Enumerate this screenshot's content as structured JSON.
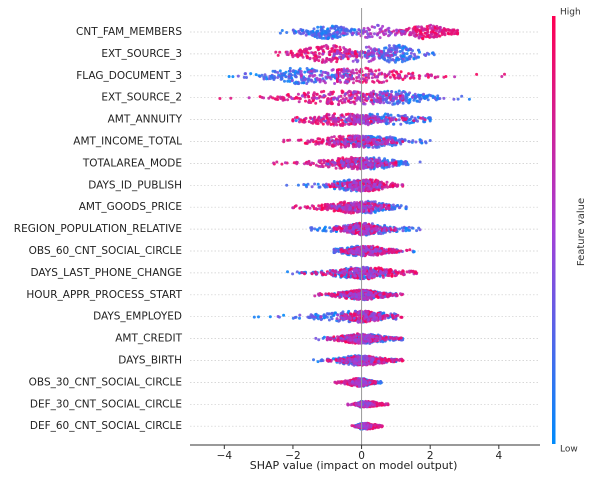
{
  "chart_data": {
    "type": "scatter",
    "subtype": "shap-beeswarm",
    "xlabel": "SHAP value (impact on model output)",
    "xlim": [
      -5.0,
      5.2
    ],
    "xticks": [
      -4,
      -2,
      0,
      2,
      4
    ],
    "xtick_labels": [
      "−4",
      "−2",
      "0",
      "2",
      "4"
    ],
    "grid": false,
    "zero_line": true,
    "features": [
      {
        "name": "CNT_FAM_MEMBERS",
        "low_range": [
          -2.4,
          0.0
        ],
        "high_range": [
          0.6,
          2.8
        ],
        "low_center": -1.0,
        "high_center": 1.9,
        "low_side": "right",
        "spread": 7
      },
      {
        "name": "EXT_SOURCE_3",
        "low_range": [
          -0.2,
          2.3
        ],
        "high_range": [
          -2.5,
          0.3
        ],
        "low_center": 1.0,
        "high_center": -1.0,
        "low_side": "right",
        "spread": 9
      },
      {
        "name": "FLAG_DOCUMENT_3",
        "low_range": [
          -3.9,
          -0.3
        ],
        "high_range": [
          -0.7,
          4.2
        ],
        "low_center": -1.8,
        "high_center": 0.0,
        "low_side": "left",
        "spread": 8
      },
      {
        "name": "EXT_SOURCE_2",
        "low_range": [
          0.0,
          3.3
        ],
        "high_range": [
          -4.5,
          1.2
        ],
        "low_center": 1.0,
        "high_center": -0.6,
        "low_side": "right",
        "spread": 7
      },
      {
        "name": "AMT_ANNUITY",
        "low_range": [
          -2.0,
          2.0
        ],
        "high_range": [
          -2.0,
          2.0
        ],
        "low_center": 0.6,
        "high_center": -0.6,
        "low_side": "right",
        "spread": 6
      },
      {
        "name": "AMT_INCOME_TOTAL",
        "low_range": [
          -1.0,
          2.0
        ],
        "high_range": [
          -2.4,
          1.2
        ],
        "low_center": 0.4,
        "high_center": -0.4,
        "low_side": "right",
        "spread": 6
      },
      {
        "name": "TOTALAREA_MODE",
        "low_range": [
          -1.0,
          1.9
        ],
        "high_range": [
          -2.7,
          1.0
        ],
        "low_center": 0.3,
        "high_center": -0.3,
        "low_side": "right",
        "spread": 6
      },
      {
        "name": "DAYS_ID_PUBLISH",
        "low_range": [
          -2.4,
          0.6
        ],
        "high_range": [
          -1.0,
          1.2
        ],
        "low_center": -0.2,
        "high_center": 0.2,
        "low_side": "left",
        "spread": 6
      },
      {
        "name": "AMT_GOODS_PRICE",
        "low_range": [
          -1.0,
          1.3
        ],
        "high_range": [
          -2.2,
          0.8
        ],
        "low_center": 0.2,
        "high_center": -0.3,
        "low_side": "right",
        "spread": 6
      },
      {
        "name": "REGION_POPULATION_RELATIVE",
        "low_range": [
          -1.5,
          1.8
        ],
        "high_range": [
          -0.8,
          1.0
        ],
        "low_center": 0.1,
        "high_center": 0.0,
        "low_side": "right",
        "spread": 6
      },
      {
        "name": "OBS_60_CNT_SOCIAL_CIRCLE",
        "low_range": [
          -0.8,
          1.7
        ],
        "high_range": [
          -0.6,
          1.5
        ],
        "low_center": 0.0,
        "high_center": 0.2,
        "low_side": "left",
        "spread": 5
      },
      {
        "name": "DAYS_LAST_PHONE_CHANGE",
        "low_range": [
          -2.2,
          1.0
        ],
        "high_range": [
          -1.8,
          1.6
        ],
        "low_center": -0.1,
        "high_center": 0.2,
        "low_side": "left",
        "spread": 6
      },
      {
        "name": "HOUR_APPR_PROCESS_START",
        "low_range": [
          -1.3,
          1.0
        ],
        "high_range": [
          -1.5,
          1.2
        ],
        "low_center": 0.0,
        "high_center": 0.0,
        "low_side": "right",
        "spread": 5
      },
      {
        "name": "DAYS_EMPLOYED",
        "low_range": [
          -3.2,
          1.0
        ],
        "high_range": [
          -0.6,
          1.2
        ],
        "low_center": -0.1,
        "high_center": 0.1,
        "low_side": "left",
        "spread": 6
      },
      {
        "name": "AMT_CREDIT",
        "low_range": [
          -1.4,
          1.2
        ],
        "high_range": [
          -1.0,
          1.2
        ],
        "low_center": 0.1,
        "high_center": -0.1,
        "low_side": "right",
        "spread": 5
      },
      {
        "name": "DAYS_BIRTH",
        "low_range": [
          -1.4,
          1.0
        ],
        "high_range": [
          -1.0,
          1.3
        ],
        "low_center": -0.1,
        "high_center": 0.1,
        "low_side": "left",
        "spread": 5
      },
      {
        "name": "OBS_30_CNT_SOCIAL_CIRCLE",
        "low_range": [
          -0.5,
          0.6
        ],
        "high_range": [
          -0.9,
          0.4
        ],
        "low_center": 0.0,
        "high_center": -0.1,
        "low_side": "right",
        "spread": 4
      },
      {
        "name": "DEF_30_CNT_SOCIAL_CIRCLE",
        "low_range": [
          -0.2,
          0.2
        ],
        "high_range": [
          -0.4,
          0.8
        ],
        "low_center": 0.0,
        "high_center": 0.2,
        "low_side": "left",
        "spread": 3
      },
      {
        "name": "DEF_60_CNT_SOCIAL_CIRCLE",
        "low_range": [
          -0.2,
          0.2
        ],
        "high_range": [
          -0.3,
          0.6
        ],
        "low_center": 0.0,
        "high_center": 0.2,
        "low_side": "left",
        "spread": 3
      }
    ],
    "colorbar": {
      "label": "Feature value",
      "high_label": "High",
      "low_label": "Low",
      "high_color": "#ff0052",
      "low_color": "#008bfb"
    }
  }
}
